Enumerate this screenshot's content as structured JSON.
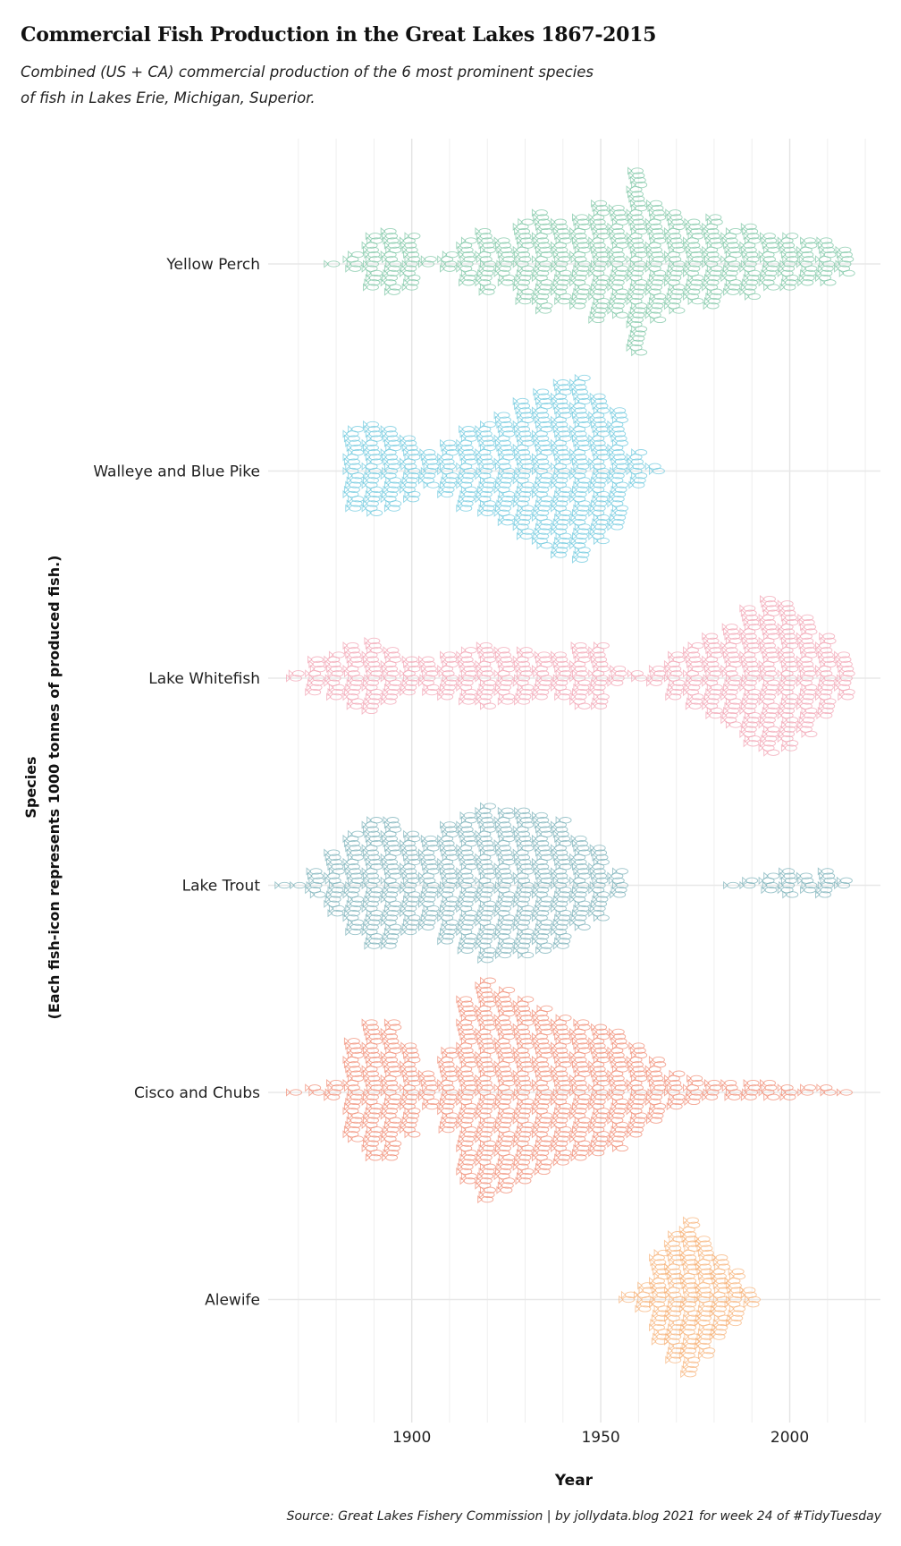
{
  "title": "Commercial Fish Production in the Great Lakes 1867-2015",
  "subtitle_lines": [
    "Combined (US + CA) commercial production of the 6 most prominent species",
    "of fish in Lakes Erie, Michigan, Superior."
  ],
  "source": "Source: Great Lakes Fishery Commission | by jollydata.blog 2021 for week 24 of #TidyTuesday",
  "chart_data": {
    "type": "beeswarm",
    "xlabel": "Year",
    "ylabel_lines": [
      "Species",
      "(Each fish-icon represents 1000 tonnes of produced fish.)"
    ],
    "x_ticks": [
      1900,
      1950,
      2000
    ],
    "xlim": [
      1862,
      2024
    ],
    "unit": "1000 tonnes per fish icon",
    "grid": true,
    "species": [
      {
        "name": "Yellow Perch",
        "color": "#7cc6a4",
        "x": [
          1880,
          1885,
          1890,
          1895,
          1900,
          1905,
          1910,
          1915,
          1920,
          1925,
          1930,
          1935,
          1940,
          1945,
          1950,
          1955,
          1960,
          1965,
          1970,
          1975,
          1980,
          1985,
          1990,
          1995,
          2000,
          2005,
          2010,
          2015
        ],
        "values": [
          1,
          4,
          12,
          14,
          12,
          2,
          4,
          10,
          14,
          10,
          18,
          22,
          18,
          20,
          26,
          24,
          40,
          26,
          22,
          18,
          20,
          14,
          16,
          12,
          12,
          10,
          10,
          6
        ]
      },
      {
        "name": "Walleye and Blue Pike",
        "color": "#6cc8de",
        "x": [
          1885,
          1890,
          1895,
          1900,
          1905,
          1910,
          1915,
          1920,
          1925,
          1930,
          1935,
          1940,
          1945,
          1950,
          1955,
          1960,
          1965
        ],
        "values": [
          18,
          20,
          18,
          14,
          8,
          12,
          18,
          20,
          24,
          30,
          34,
          38,
          40,
          32,
          26,
          8,
          2
        ]
      },
      {
        "name": "Lake Whitefish",
        "color": "#f2a2b2",
        "x": [
          1870,
          1875,
          1880,
          1885,
          1890,
          1895,
          1900,
          1905,
          1910,
          1915,
          1920,
          1925,
          1930,
          1935,
          1940,
          1945,
          1950,
          1955,
          1960,
          1965,
          1970,
          1975,
          1980,
          1985,
          1990,
          1995,
          2000,
          2005,
          2010,
          2015
        ],
        "values": [
          2,
          8,
          10,
          14,
          16,
          12,
          8,
          8,
          10,
          12,
          14,
          12,
          12,
          10,
          10,
          14,
          14,
          4,
          2,
          4,
          10,
          14,
          18,
          22,
          30,
          34,
          32,
          26,
          18,
          10
        ]
      },
      {
        "name": "Lake Trout",
        "color": "#79b0b8",
        "x": [
          1867,
          1870,
          1875,
          1880,
          1885,
          1890,
          1895,
          1900,
          1905,
          1910,
          1915,
          1920,
          1925,
          1930,
          1935,
          1940,
          1945,
          1950,
          1955,
          1985,
          1990,
          1995,
          2000,
          2005,
          2010,
          2015
        ],
        "values": [
          1,
          1,
          6,
          14,
          22,
          28,
          28,
          22,
          20,
          26,
          30,
          34,
          32,
          32,
          30,
          28,
          20,
          16,
          6,
          1,
          2,
          4,
          6,
          4,
          6,
          2
        ]
      },
      {
        "name": "Cisco and Chubs",
        "color": "#f08a72",
        "x": [
          1870,
          1875,
          1880,
          1885,
          1890,
          1895,
          1900,
          1905,
          1910,
          1915,
          1920,
          1925,
          1930,
          1935,
          1940,
          1945,
          1950,
          1955,
          1960,
          1965,
          1970,
          1975,
          1980,
          1985,
          1990,
          1995,
          2000,
          2005,
          2010,
          2015
        ],
        "values": [
          1,
          2,
          4,
          22,
          30,
          30,
          20,
          8,
          18,
          40,
          48,
          44,
          40,
          36,
          32,
          30,
          28,
          26,
          20,
          14,
          8,
          6,
          4,
          4,
          4,
          4,
          3,
          2,
          2,
          1
        ]
      },
      {
        "name": "Alewife",
        "color": "#f7b37a",
        "x": [
          1958,
          1962,
          1966,
          1970,
          1974,
          1978,
          1982,
          1986,
          1990
        ],
        "values": [
          2,
          6,
          20,
          28,
          34,
          26,
          18,
          12,
          4
        ]
      }
    ]
  }
}
